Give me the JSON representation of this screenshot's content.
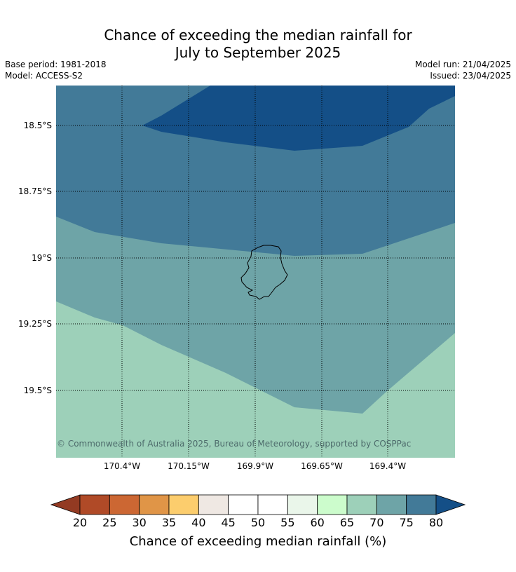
{
  "title": {
    "line1": "Chance of exceeding the median rainfall for",
    "line2": "July to September 2025"
  },
  "meta": {
    "base_period": "Base period: 1981-2018",
    "model": "Model: ACCESS-S2",
    "model_run": "Model run: 21/04/2025",
    "issued": "Issued: 23/04/2025"
  },
  "map": {
    "latitude_labels": [
      "18.5°S",
      "18.75°S",
      "19°S",
      "19.25°S",
      "19.5°S"
    ],
    "longitude_labels": [
      "170.4°W",
      "170.15°W",
      "169.9°W",
      "169.65°W",
      "169.4°W"
    ],
    "copyright": "© Commonwealth of Australia 2025, Bureau of Meteorology, supported by COSPPac",
    "zone_colors": {
      "80+": "#144f87",
      "75-80": "#427a98",
      "70-75": "#6ea4a7",
      "65-70": "#9dd0b9"
    }
  },
  "colorbar": {
    "title": "Chance of exceeding median rainfall (%)",
    "ticks": [
      "20",
      "25",
      "30",
      "35",
      "40",
      "45",
      "50",
      "55",
      "60",
      "65",
      "70",
      "75",
      "80"
    ],
    "low_extend_color": "#933a22",
    "high_extend_color": "#144f87",
    "bin_colors": [
      "#b04a27",
      "#cc6733",
      "#e09547",
      "#fccd6d",
      "#efe8e3",
      "#ffffff",
      "#ffffff",
      "#eaf6ea",
      "#ccfccc",
      "#9dd0b9",
      "#6ea4a7",
      "#427a98"
    ]
  }
}
